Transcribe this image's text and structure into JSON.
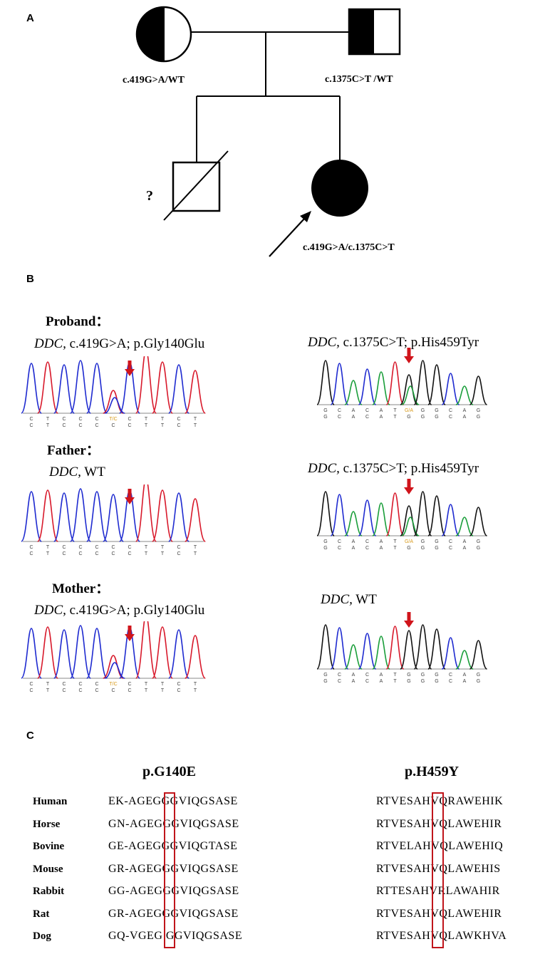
{
  "panels": {
    "a": "A",
    "b": "B",
    "c": "C"
  },
  "pedigree": {
    "mother_genotype": "c.419G>A/WT",
    "father_genotype": "c.1375C>T /WT",
    "unknown_mark": "?",
    "proband_genotype": "c.419G>A/c.1375C>T"
  },
  "sequencing": {
    "gene": "DDC,",
    "rows": [
      {
        "person": "Proband",
        "colon": "：",
        "left_label": "c.419G>A; p.Gly140Glu",
        "right_label": "c.1375C>T; p.His459Tyr",
        "left_bases_top": [
          "C",
          "T",
          "C",
          "C",
          "C",
          "T/C",
          "C",
          "T",
          "T",
          "C",
          "T"
        ],
        "left_bases_bottom": [
          "C",
          "T",
          "C",
          "C",
          "C",
          "C",
          "C",
          "T",
          "T",
          "C",
          "T"
        ],
        "right_bases_top": [
          "G",
          "C",
          "A",
          "C",
          "A",
          "T",
          "G/A",
          "G",
          "G",
          "C",
          "A",
          "G"
        ],
        "right_bases_bottom": [
          "G",
          "C",
          "A",
          "C",
          "A",
          "T",
          "G",
          "G",
          "G",
          "C",
          "A",
          "G"
        ]
      },
      {
        "person": "Father",
        "colon": "：",
        "left_label": "WT",
        "right_label": "c.1375C>T; p.His459Tyr",
        "left_bases_top": [
          "C",
          "T",
          "C",
          "C",
          "C",
          "C",
          "C",
          "T",
          "T",
          "C",
          "T"
        ],
        "left_bases_bottom": [
          "C",
          "T",
          "C",
          "C",
          "C",
          "C",
          "C",
          "T",
          "T",
          "C",
          "T"
        ],
        "right_bases_top": [
          "G",
          "C",
          "A",
          "C",
          "A",
          "T",
          "G/A",
          "G",
          "G",
          "C",
          "A",
          "G"
        ],
        "right_bases_bottom": [
          "G",
          "C",
          "A",
          "C",
          "A",
          "T",
          "G",
          "G",
          "G",
          "C",
          "A",
          "G"
        ]
      },
      {
        "person": "Mother",
        "colon": "：",
        "left_label": "c.419G>A; p.Gly140Glu",
        "right_label": "WT",
        "left_bases_top": [
          "C",
          "T",
          "C",
          "C",
          "C",
          "T/C",
          "C",
          "T",
          "T",
          "C",
          "T"
        ],
        "left_bases_bottom": [
          "C",
          "T",
          "C",
          "C",
          "C",
          "C",
          "C",
          "T",
          "T",
          "C",
          "T"
        ],
        "right_bases_top": [
          "G",
          "C",
          "A",
          "C",
          "A",
          "T",
          "G",
          "G",
          "G",
          "C",
          "A",
          "G"
        ],
        "right_bases_bottom": [
          "G",
          "C",
          "A",
          "C",
          "A",
          "T",
          "G",
          "G",
          "G",
          "C",
          "A",
          "G"
        ]
      }
    ]
  },
  "conservation": {
    "left_title": "p.G140E",
    "right_title": "p.H459Y",
    "rows": [
      {
        "species": "Human",
        "left": "EK-AGE G GGVIQGSASE",
        "right": "RTVESA H VQRAWEHIK"
      },
      {
        "species": "Horse",
        "left": "GN-AGE G GGVIQGSASE",
        "right": "RTVESA H VQLAWEHIR"
      },
      {
        "species": "Bovine",
        "left": "GE-AGE G GGVIQGTASE",
        "right": "RTVELA H VQLAWEHIQ"
      },
      {
        "species": "Mouse",
        "left": "GR-AGE G GGVIQGSASE",
        "right": "RTVESA H VQLAWEHIS"
      },
      {
        "species": "Rabbit",
        "left": "GG-AGE G GGVIQGSASE",
        "right": "RTTESA H VRLAWAHIR"
      },
      {
        "species": "Rat",
        "left": "GR-AGE G GGVIQGSASE",
        "right": "RTVESA H VQLAWEHIR"
      },
      {
        "species": "Dog",
        "left": "GQ-VGE G  GGVIQGSASE",
        "right": "RTVESA H VQLAWKHVA"
      }
    ]
  }
}
